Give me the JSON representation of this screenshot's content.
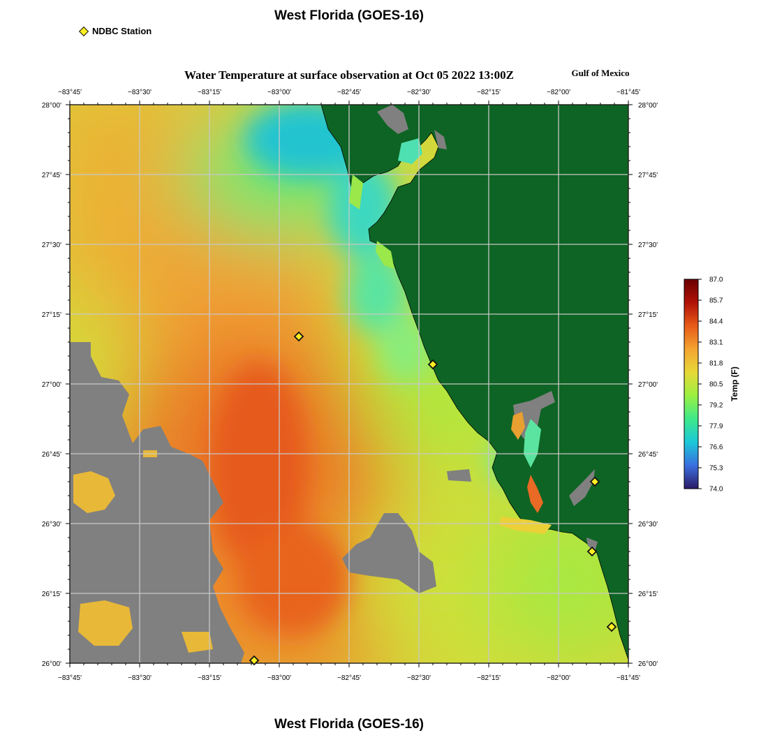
{
  "page": {
    "title_top": "West Florida (GOES-16)",
    "title_bottom": "West Florida (GOES-16)",
    "legend_label": "NDBC Station",
    "subtitle": "Water Temperature at surface observation at Oct 05 2022 13:00Z",
    "region_label": "Gulf of Mexico"
  },
  "map": {
    "lon_range": [
      -83.75,
      -81.75
    ],
    "lat_range": [
      26.0,
      28.0
    ],
    "lon_ticks": [
      {
        "value": -83.75,
        "label": "−83°45'"
      },
      {
        "value": -83.5,
        "label": "−83°30'"
      },
      {
        "value": -83.25,
        "label": "−83°15'"
      },
      {
        "value": -83.0,
        "label": "−83°00'"
      },
      {
        "value": -82.75,
        "label": "−82°45'"
      },
      {
        "value": -82.5,
        "label": "−82°30'"
      },
      {
        "value": -82.25,
        "label": "−82°15'"
      },
      {
        "value": -82.0,
        "label": "−82°00'"
      },
      {
        "value": -81.75,
        "label": "−81°45'"
      }
    ],
    "lat_ticks": [
      {
        "value": 28.0,
        "label": "28°00'"
      },
      {
        "value": 27.75,
        "label": "27°45'"
      },
      {
        "value": 27.5,
        "label": "27°30'"
      },
      {
        "value": 27.25,
        "label": "27°15'"
      },
      {
        "value": 27.0,
        "label": "27°00'"
      },
      {
        "value": 26.75,
        "label": "26°45'"
      },
      {
        "value": 26.5,
        "label": "26°30'"
      },
      {
        "value": 26.25,
        "label": "26°15'"
      },
      {
        "value": 26.0,
        "label": "26°00'"
      }
    ],
    "stations": [
      {
        "lon": -82.93,
        "lat": 27.17
      },
      {
        "lon": -82.45,
        "lat": 27.07
      },
      {
        "lon": -81.87,
        "lat": 26.65
      },
      {
        "lon": -81.88,
        "lat": 26.4
      },
      {
        "lon": -81.81,
        "lat": 26.13
      },
      {
        "lon": -83.09,
        "lat": 26.01
      }
    ],
    "colors": {
      "land": "#0e6424",
      "no_data": "#808080",
      "grid": "#c8c8c8",
      "station": "#ffee22"
    }
  },
  "colorbar": {
    "title": "Temp (F)",
    "min": 74.0,
    "max": 87.0,
    "tick_labels": [
      "87.0",
      "85.7",
      "84.4",
      "83.1",
      "81.8",
      "80.5",
      "79.2",
      "77.9",
      "76.6",
      "75.3",
      "74.0"
    ],
    "stops": [
      "#2b1a66",
      "#3a6fe0",
      "#1ac8d8",
      "#3ee88a",
      "#9af040",
      "#e8d838",
      "#f4a430",
      "#e85a18",
      "#b01208",
      "#6a0000"
    ]
  }
}
